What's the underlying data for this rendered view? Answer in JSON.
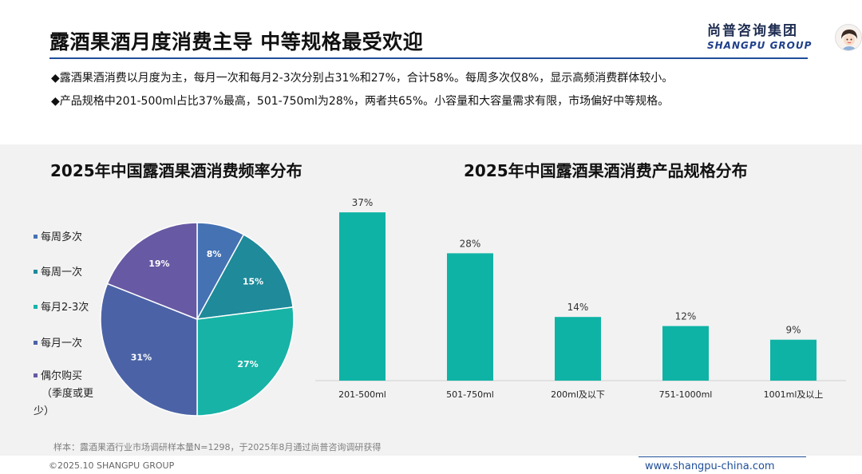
{
  "header": {
    "title": "露酒果酒月度消费主导 中等规格最受欢迎",
    "logo_cn": "尚普咨询集团",
    "logo_en": "SHANGPU GROUP"
  },
  "bullets": [
    "◆露酒果酒消费以月度为主，每月一次和每月2-3次分别占31%和27%，合计58%。每周多次仅8%，显示高频消费群体较小。",
    "◆产品规格中201-500ml占比37%最高，501-750ml为28%，两者共65%。小容量和大容量需求有限，市场偏好中等规格。"
  ],
  "chart_data": [
    {
      "type": "pie",
      "title": "2025年中国露酒果酒消费频率分布",
      "legend_position": "left",
      "slices": [
        {
          "label": "每周多次",
          "value": 8,
          "label_text": "8%",
          "color": "#4472b3"
        },
        {
          "label": "每周一次",
          "value": 15,
          "label_text": "15%",
          "color": "#1e8a9a"
        },
        {
          "label": "每月2-3次",
          "value": 27,
          "label_text": "27%",
          "color": "#17b3a6"
        },
        {
          "label": "每月一次",
          "value": 31,
          "label_text": "31%",
          "color": "#4b63a6"
        },
        {
          "label": "偶尔购买（季度或更少）",
          "value": 19,
          "label_text": "19%",
          "color": "#6759a3"
        }
      ],
      "legend_lines": [
        [
          "每周多次"
        ],
        [
          "每周一次"
        ],
        [
          "每月2-3次"
        ],
        [
          "每月一次"
        ],
        [
          "偶尔购买",
          "（季度或更",
          "少）"
        ]
      ]
    },
    {
      "type": "bar",
      "title": "2025年中国露酒果酒消费产品规格分布",
      "categories": [
        "201-500ml",
        "501-750ml",
        "200ml及以下",
        "751-1000ml",
        "1001ml及以上"
      ],
      "values": [
        37,
        28,
        14,
        12,
        9
      ],
      "value_labels": [
        "37%",
        "28%",
        "14%",
        "12%",
        "9%"
      ],
      "ylim": [
        0,
        40
      ],
      "grid": false,
      "color": "#0fb3a6"
    }
  ],
  "note": "样本：露酒果酒行业市场调研样本量N=1298，于2025年8月通过尚普咨询调研获得",
  "footer": {
    "copyright": "©2025.10 SHANGPU GROUP",
    "website": "www.shangpu-china.com"
  }
}
